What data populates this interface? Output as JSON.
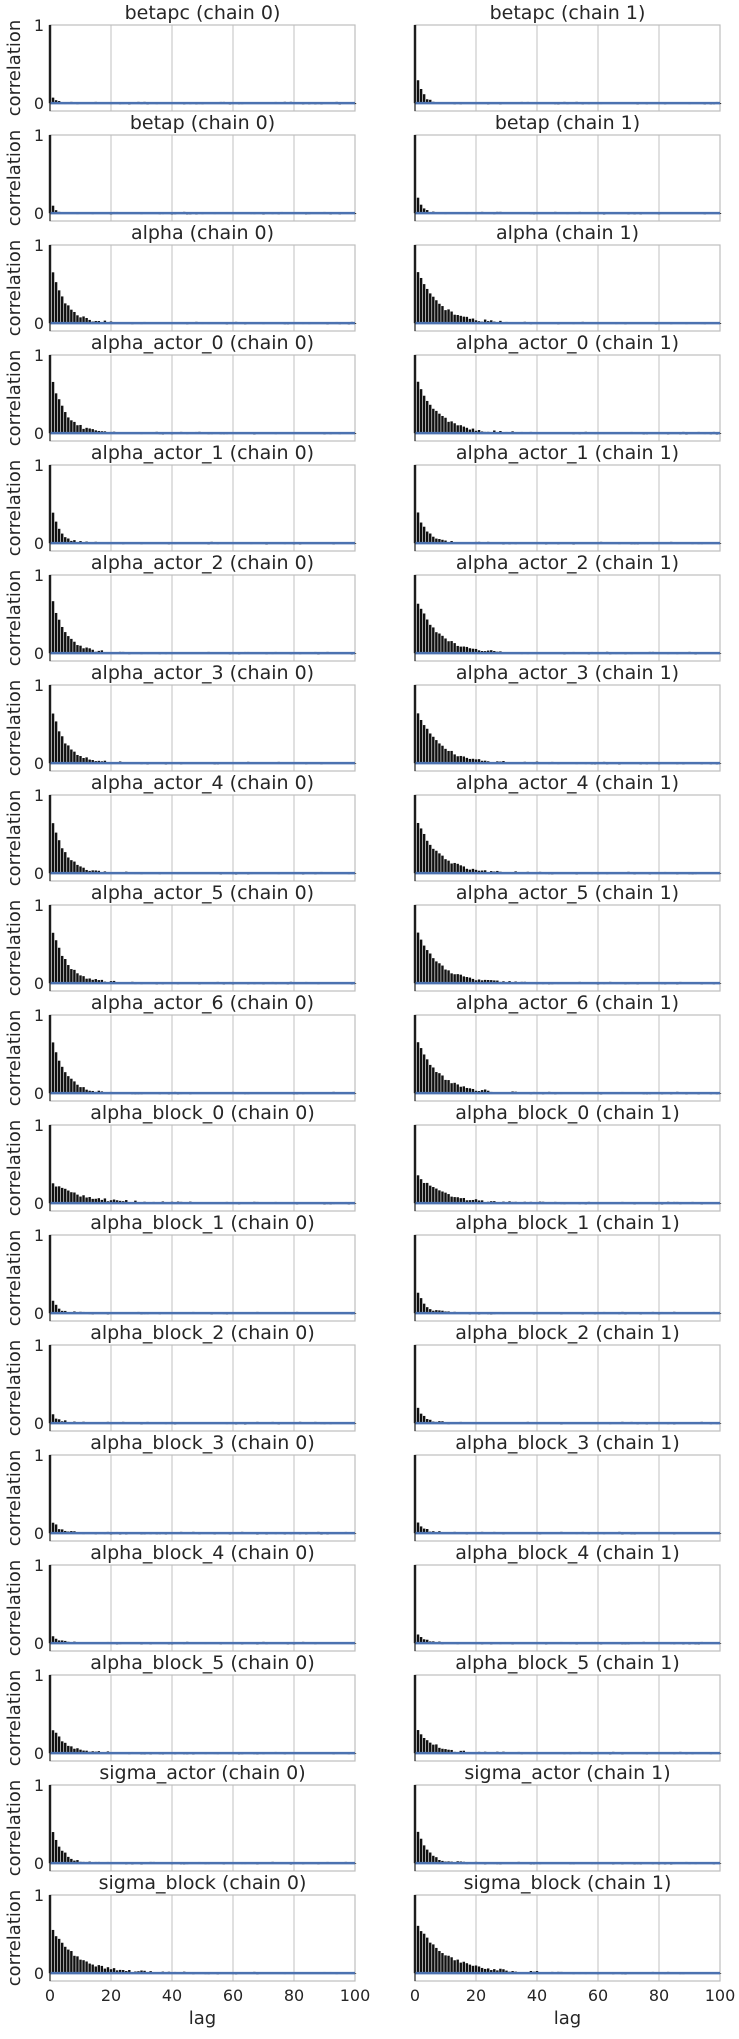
{
  "chart_data": {
    "type": "bar",
    "description_kind": "autocorrelation grid",
    "ylabel": "correlation",
    "xlabel": "lag",
    "xlim": [
      0,
      100
    ],
    "ylim": [
      -0.1,
      1
    ],
    "x_ticks": [
      0,
      20,
      40,
      60,
      80,
      100
    ],
    "y_ticks": [
      0,
      1
    ],
    "grid": true,
    "columns": [
      "chain 0",
      "chain 1"
    ],
    "panels": [
      {
        "title": "betapc (chain 0)",
        "chain": 0,
        "decay": 0.08,
        "rate": 0.7,
        "level": 0.0
      },
      {
        "title": "betapc (chain 1)",
        "chain": 1,
        "decay": 0.3,
        "rate": 0.55,
        "level": 0.0
      },
      {
        "title": "betap (chain 0)",
        "chain": 0,
        "decay": 0.1,
        "rate": 0.6,
        "level": 0.0
      },
      {
        "title": "betap (chain 1)",
        "chain": 1,
        "decay": 0.2,
        "rate": 0.55,
        "level": 0.0
      },
      {
        "title": "alpha (chain 0)",
        "chain": 0,
        "decay": 0.65,
        "rate": 0.22,
        "level": 0.0
      },
      {
        "title": "alpha (chain 1)",
        "chain": 1,
        "decay": 0.65,
        "rate": 0.14,
        "level": 0.0
      },
      {
        "title": "alpha_actor_0 (chain 0)",
        "chain": 0,
        "decay": 0.65,
        "rate": 0.22,
        "level": 0.0
      },
      {
        "title": "alpha_actor_0 (chain 1)",
        "chain": 1,
        "decay": 0.65,
        "rate": 0.14,
        "level": 0.0
      },
      {
        "title": "alpha_actor_1 (chain 0)",
        "chain": 0,
        "decay": 0.38,
        "rate": 0.35,
        "level": 0.0
      },
      {
        "title": "alpha_actor_1 (chain 1)",
        "chain": 1,
        "decay": 0.38,
        "rate": 0.3,
        "level": 0.0
      },
      {
        "title": "alpha_actor_2 (chain 0)",
        "chain": 0,
        "decay": 0.65,
        "rate": 0.22,
        "level": 0.0
      },
      {
        "title": "alpha_actor_2 (chain 1)",
        "chain": 1,
        "decay": 0.65,
        "rate": 0.14,
        "level": 0.0
      },
      {
        "title": "alpha_actor_3 (chain 0)",
        "chain": 0,
        "decay": 0.65,
        "rate": 0.22,
        "level": 0.0
      },
      {
        "title": "alpha_actor_3 (chain 1)",
        "chain": 1,
        "decay": 0.65,
        "rate": 0.14,
        "level": 0.0
      },
      {
        "title": "alpha_actor_4 (chain 0)",
        "chain": 0,
        "decay": 0.65,
        "rate": 0.22,
        "level": 0.0
      },
      {
        "title": "alpha_actor_4 (chain 1)",
        "chain": 1,
        "decay": 0.65,
        "rate": 0.14,
        "level": 0.0
      },
      {
        "title": "alpha_actor_5 (chain 0)",
        "chain": 0,
        "decay": 0.65,
        "rate": 0.2,
        "level": 0.0
      },
      {
        "title": "alpha_actor_5 (chain 1)",
        "chain": 1,
        "decay": 0.65,
        "rate": 0.14,
        "level": 0.0
      },
      {
        "title": "alpha_actor_6 (chain 0)",
        "chain": 0,
        "decay": 0.65,
        "rate": 0.22,
        "level": 0.0
      },
      {
        "title": "alpha_actor_6 (chain 1)",
        "chain": 1,
        "decay": 0.65,
        "rate": 0.14,
        "level": 0.0
      },
      {
        "title": "alpha_block_0 (chain 0)",
        "chain": 0,
        "decay": 0.25,
        "rate": 0.1,
        "level": 0.0
      },
      {
        "title": "alpha_block_0 (chain 1)",
        "chain": 1,
        "decay": 0.35,
        "rate": 0.12,
        "level": 0.0
      },
      {
        "title": "alpha_block_1 (chain 0)",
        "chain": 0,
        "decay": 0.15,
        "rate": 0.4,
        "level": 0.0
      },
      {
        "title": "alpha_block_1 (chain 1)",
        "chain": 1,
        "decay": 0.25,
        "rate": 0.35,
        "level": 0.0
      },
      {
        "title": "alpha_block_2 (chain 0)",
        "chain": 0,
        "decay": 0.1,
        "rate": 0.4,
        "level": 0.0
      },
      {
        "title": "alpha_block_2 (chain 1)",
        "chain": 1,
        "decay": 0.18,
        "rate": 0.4,
        "level": 0.0
      },
      {
        "title": "alpha_block_3 (chain 0)",
        "chain": 0,
        "decay": 0.15,
        "rate": 0.4,
        "level": 0.0
      },
      {
        "title": "alpha_block_3 (chain 1)",
        "chain": 1,
        "decay": 0.15,
        "rate": 0.4,
        "level": 0.0
      },
      {
        "title": "alpha_block_4 (chain 0)",
        "chain": 0,
        "decay": 0.1,
        "rate": 0.5,
        "level": 0.0
      },
      {
        "title": "alpha_block_4 (chain 1)",
        "chain": 1,
        "decay": 0.12,
        "rate": 0.5,
        "level": 0.0
      },
      {
        "title": "alpha_block_5 (chain 0)",
        "chain": 0,
        "decay": 0.3,
        "rate": 0.2,
        "level": 0.0
      },
      {
        "title": "alpha_block_5 (chain 1)",
        "chain": 1,
        "decay": 0.3,
        "rate": 0.18,
        "level": 0.0
      },
      {
        "title": "sigma_actor (chain 0)",
        "chain": 0,
        "decay": 0.4,
        "rate": 0.3,
        "level": 0.0
      },
      {
        "title": "sigma_actor (chain 1)",
        "chain": 1,
        "decay": 0.4,
        "rate": 0.28,
        "level": 0.0
      },
      {
        "title": "sigma_block (chain 0)",
        "chain": 0,
        "decay": 0.55,
        "rate": 0.12,
        "level": 0.0
      },
      {
        "title": "sigma_block (chain 1)",
        "chain": 1,
        "decay": 0.6,
        "rate": 0.1,
        "level": 0.0
      }
    ]
  },
  "colors": {
    "bar": "#111111",
    "zero_line": "#4c72b0",
    "grid": "#cccccc",
    "frame": "#bdbdbd"
  }
}
